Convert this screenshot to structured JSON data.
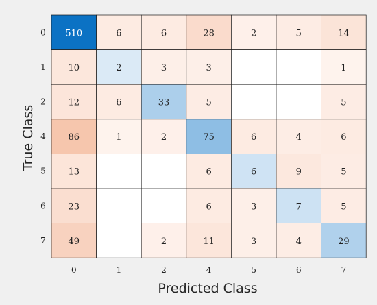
{
  "chart_data": {
    "type": "heatmap",
    "title": "",
    "xlabel": "Predicted Class",
    "ylabel": "True Class",
    "row_labels": [
      "0",
      "1",
      "2",
      "4",
      "5",
      "6",
      "7"
    ],
    "col_labels": [
      "0",
      "1",
      "2",
      "4",
      "5",
      "6",
      "7"
    ],
    "values": [
      [
        510,
        6,
        6,
        28,
        2,
        5,
        14
      ],
      [
        10,
        2,
        3,
        3,
        null,
        null,
        1
      ],
      [
        12,
        6,
        33,
        5,
        null,
        null,
        5
      ],
      [
        86,
        1,
        2,
        75,
        6,
        4,
        6
      ],
      [
        13,
        null,
        null,
        6,
        6,
        9,
        5
      ],
      [
        23,
        null,
        null,
        6,
        3,
        7,
        5
      ],
      [
        49,
        null,
        2,
        11,
        3,
        4,
        29
      ]
    ],
    "colors": {
      "diagonal_max": "#0b72c4",
      "diagonal_low": "#eef5fb",
      "offdiag_max": "#f6c6ad",
      "offdiag_low": "#fff8f5",
      "empty": "#ffffff",
      "background": "#f0f0f0"
    }
  }
}
